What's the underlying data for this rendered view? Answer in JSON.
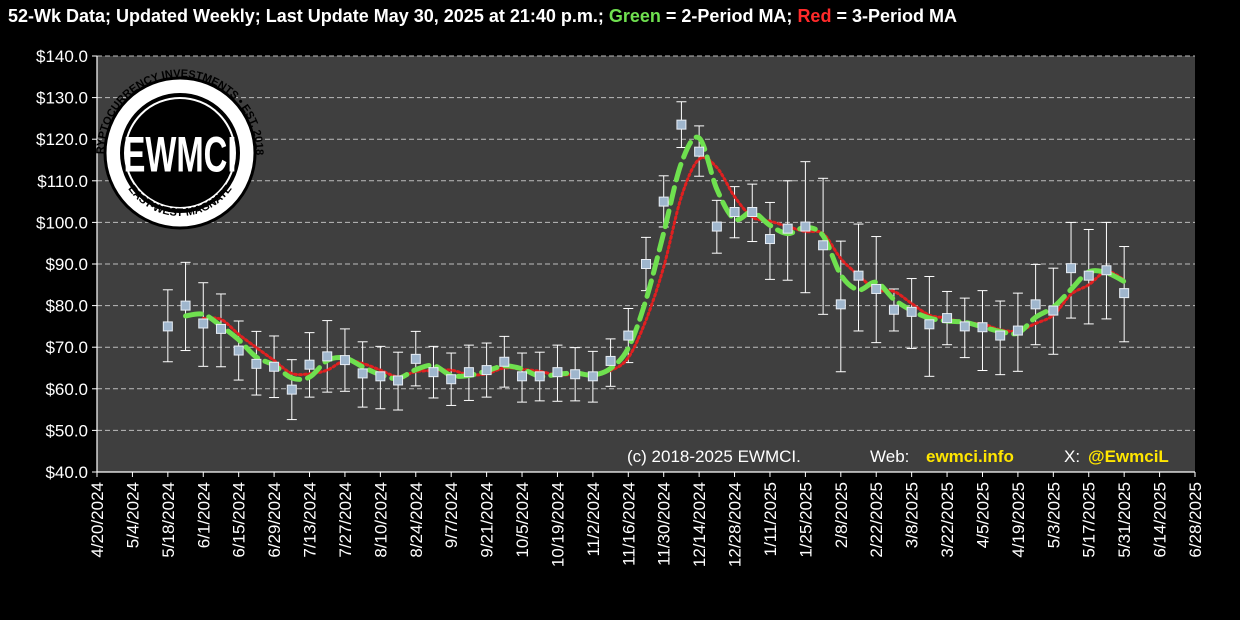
{
  "header": {
    "title_part1": "52-Wk Data; Updated Weekly; Last Update May 30, 2025 at 21:40 p.m.; ",
    "green_word": "Green",
    "title_part2": " = 2-Period MA; ",
    "red_word": "Red",
    "title_part3": " = 3-Period MA"
  },
  "logo": {
    "center_text": "EWMCI",
    "ring_text_top": "CRYPTOCURRENCY INVESTMENTS • EST. 2018 •",
    "ring_text_bottom": "EAST-WEST MAGNATE"
  },
  "footer": {
    "copyright": "(c) 2018-2025 EWMCI.",
    "web_label": "Web:",
    "web_value": "ewmci.info",
    "x_label": "X:",
    "x_value": "@EwmciL"
  },
  "colors": {
    "background": "#000000",
    "plot_area": "#3f3f3f",
    "grid": "#bdbdbd",
    "marker": "#9fb6cd",
    "error_bar": "#ffffff",
    "ma2": "#6fe04f",
    "ma3": "#e02020",
    "footer_accent": "#ffe600"
  },
  "chart_data": {
    "type": "line",
    "ylim": [
      40,
      140
    ],
    "ytick_labels": [
      "$40.0",
      "$50.0",
      "$60.0",
      "$70.0",
      "$80.0",
      "$90.0",
      "$100.0",
      "$110.0",
      "$120.0",
      "$130.0",
      "$140.0"
    ],
    "ytick_values": [
      40,
      50,
      60,
      70,
      80,
      90,
      100,
      110,
      120,
      130,
      140
    ],
    "xlim": [
      "4/20/2024",
      "6/28/2025"
    ],
    "xtick_labels": [
      "4/20/2024",
      "5/4/2024",
      "5/18/2024",
      "6/1/2024",
      "6/15/2024",
      "6/29/2024",
      "7/13/2024",
      "7/27/2024",
      "8/10/2024",
      "8/24/2024",
      "9/7/2024",
      "9/21/2024",
      "10/5/2024",
      "10/19/2024",
      "11/2/2024",
      "11/16/2024",
      "11/30/2024",
      "12/14/2024",
      "12/28/2024",
      "1/11/2025",
      "1/25/2025",
      "2/8/2025",
      "2/22/2025",
      "3/8/2025",
      "3/22/2025",
      "4/5/2025",
      "4/19/2025",
      "5/3/2025",
      "5/17/2025",
      "5/31/2025",
      "6/14/2025",
      "6/28/2025"
    ],
    "grid": true,
    "series": [
      {
        "x": [
          "5/18/2024",
          "5/25/2024",
          "6/1/2024",
          "6/8/2024",
          "6/15/2024",
          "6/22/2024",
          "6/29/2024",
          "7/6/2024",
          "7/13/2024",
          "7/20/2024",
          "7/27/2024",
          "8/3/2024",
          "8/10/2024",
          "8/17/2024",
          "8/24/2024",
          "8/31/2024",
          "9/7/2024",
          "9/14/2024",
          "9/21/2024",
          "9/28/2024",
          "10/5/2024",
          "10/12/2024",
          "10/19/2024",
          "10/26/2024",
          "11/2/2024",
          "11/9/2024",
          "11/16/2024",
          "11/23/2024",
          "11/30/2024",
          "12/7/2024",
          "12/14/2024",
          "12/21/2024",
          "12/28/2024",
          "1/4/2025",
          "1/11/2025",
          "1/18/2025",
          "1/25/2025",
          "2/1/2025",
          "2/8/2025",
          "2/15/2025",
          "2/22/2025",
          "3/1/2025",
          "3/8/2025",
          "3/15/2025",
          "3/22/2025",
          "3/29/2025",
          "4/5/2025",
          "4/12/2025",
          "4/19/2025",
          "4/26/2025",
          "5/3/2025",
          "5/10/2025",
          "5/17/2025",
          "5/24/2025",
          "5/31/2025"
        ],
        "values": [
          75.0,
          80.0,
          75.7,
          74.4,
          69.2,
          66.0,
          65.3,
          59.8,
          65.8,
          67.8,
          66.9,
          63.7,
          63.0,
          62.0,
          67.2,
          64.0,
          62.3,
          64.0,
          64.5,
          66.5,
          63.0,
          63.0,
          64.0,
          63.5,
          63.0,
          66.7,
          72.8,
          90.0,
          105.0,
          123.5,
          117.0,
          99.0,
          102.5,
          102.5,
          96.0,
          98.5,
          99.0,
          94.5,
          80.3,
          87.2,
          84.0,
          79.0,
          78.5,
          75.5,
          77.0,
          75.0,
          74.8,
          72.8,
          74.0,
          80.3,
          78.8,
          89.0,
          87.2,
          88.5,
          83.0
        ],
        "err_high": [
          83.8,
          90.4,
          85.5,
          82.8,
          76.3,
          73.8,
          72.7,
          67.0,
          73.5,
          76.4,
          74.4,
          71.3,
          70.2,
          68.8,
          73.8,
          70.2,
          68.6,
          70.5,
          71.0,
          72.6,
          68.6,
          68.8,
          70.5,
          69.9,
          69.0,
          72.0,
          79.3,
          96.4,
          111.2,
          129.0,
          123.2,
          105.3,
          108.6,
          109.2,
          104.8,
          110.0,
          114.6,
          110.6,
          95.5,
          99.6,
          96.6,
          84.0,
          86.5,
          87.0,
          83.4,
          81.8,
          83.6,
          81.1,
          83.0,
          89.9,
          89.0,
          100.0,
          98.3,
          100.0,
          94.2
        ],
        "err_low": [
          66.5,
          69.2,
          65.4,
          65.3,
          62.1,
          58.5,
          57.9,
          52.6,
          58.0,
          59.2,
          59.4,
          55.6,
          55.2,
          54.9,
          60.7,
          57.8,
          56.0,
          57.2,
          58.0,
          60.4,
          56.8,
          57.1,
          57.0,
          57.1,
          56.8,
          60.6,
          66.3,
          83.6,
          98.9,
          118.0,
          111.1,
          92.6,
          96.3,
          95.4,
          86.3,
          86.1,
          83.1,
          77.9,
          64.1,
          73.9,
          71.1,
          73.9,
          69.7,
          63.0,
          70.6,
          67.5,
          64.4,
          63.4,
          64.2,
          70.6,
          68.3,
          77.0,
          75.6,
          76.8,
          71.3
        ]
      },
      {
        "name": "Green = 2-Period MA",
        "x": [
          "5/25/2024",
          "6/1/2024",
          "6/8/2024",
          "6/15/2024",
          "6/22/2024",
          "6/29/2024",
          "7/6/2024",
          "7/13/2024",
          "7/20/2024",
          "7/27/2024",
          "8/3/2024",
          "8/10/2024",
          "8/17/2024",
          "8/24/2024",
          "8/31/2024",
          "9/7/2024",
          "9/14/2024",
          "9/21/2024",
          "9/28/2024",
          "10/5/2024",
          "10/12/2024",
          "10/19/2024",
          "10/26/2024",
          "11/2/2024",
          "11/9/2024",
          "11/16/2024",
          "11/23/2024",
          "11/30/2024",
          "12/7/2024",
          "12/14/2024",
          "12/21/2024",
          "12/28/2024",
          "1/4/2025",
          "1/11/2025",
          "1/18/2025",
          "1/25/2025",
          "2/1/2025",
          "2/8/2025",
          "2/15/2025",
          "2/22/2025",
          "3/1/2025",
          "3/8/2025",
          "3/15/2025",
          "3/22/2025",
          "3/29/2025",
          "4/5/2025",
          "4/12/2025",
          "4/19/2025",
          "4/26/2025",
          "5/3/2025",
          "5/10/2025",
          "5/17/2025",
          "5/24/2025",
          "5/31/2025"
        ],
        "values": [
          77.5,
          77.9,
          75.1,
          71.8,
          67.6,
          65.7,
          62.6,
          62.8,
          66.8,
          67.4,
          65.3,
          63.4,
          62.5,
          64.6,
          65.6,
          63.2,
          63.2,
          64.3,
          65.5,
          64.8,
          63.0,
          63.5,
          63.8,
          63.3,
          64.9,
          69.8,
          81.4,
          97.5,
          114.3,
          120.3,
          108.0,
          100.8,
          102.5,
          99.3,
          97.3,
          98.8,
          96.8,
          87.4,
          83.8,
          85.6,
          81.5,
          78.8,
          77.0,
          76.3,
          76.0,
          74.9,
          73.8,
          73.4,
          77.2,
          79.6,
          83.9,
          88.1,
          87.9,
          85.8
        ]
      },
      {
        "name": "Red = 3-Period MA",
        "x": [
          "6/1/2024",
          "6/8/2024",
          "6/15/2024",
          "6/22/2024",
          "6/29/2024",
          "7/6/2024",
          "7/13/2024",
          "7/20/2024",
          "7/27/2024",
          "8/3/2024",
          "8/10/2024",
          "8/17/2024",
          "8/24/2024",
          "8/31/2024",
          "9/7/2024",
          "9/14/2024",
          "9/21/2024",
          "9/28/2024",
          "10/5/2024",
          "10/12/2024",
          "10/19/2024",
          "10/26/2024",
          "11/2/2024",
          "11/9/2024",
          "11/16/2024",
          "11/23/2024",
          "11/30/2024",
          "12/7/2024",
          "12/14/2024",
          "12/21/2024",
          "12/28/2024",
          "1/4/2025",
          "1/11/2025",
          "1/18/2025",
          "1/25/2025",
          "2/1/2025",
          "2/8/2025",
          "2/15/2025",
          "2/22/2025",
          "3/1/2025",
          "3/8/2025",
          "3/15/2025",
          "3/22/2025",
          "3/29/2025",
          "4/5/2025",
          "4/12/2025",
          "4/19/2025",
          "4/26/2025",
          "5/3/2025",
          "5/10/2025",
          "5/17/2025",
          "5/24/2025",
          "5/31/2025"
        ],
        "values": [
          76.9,
          76.7,
          73.1,
          69.9,
          66.8,
          63.7,
          63.6,
          64.5,
          66.8,
          66.1,
          64.5,
          62.9,
          64.1,
          64.4,
          64.5,
          63.4,
          63.6,
          65.0,
          64.7,
          64.2,
          63.3,
          63.5,
          63.5,
          64.4,
          67.5,
          76.5,
          89.3,
          106.2,
          115.2,
          113.2,
          106.2,
          101.3,
          100.3,
          99.0,
          97.8,
          97.3,
          91.3,
          87.3,
          83.8,
          83.4,
          80.5,
          77.7,
          77.0,
          75.8,
          75.6,
          74.2,
          73.9,
          75.7,
          77.7,
          82.7,
          85.0,
          88.2,
          86.2
        ]
      }
    ]
  }
}
